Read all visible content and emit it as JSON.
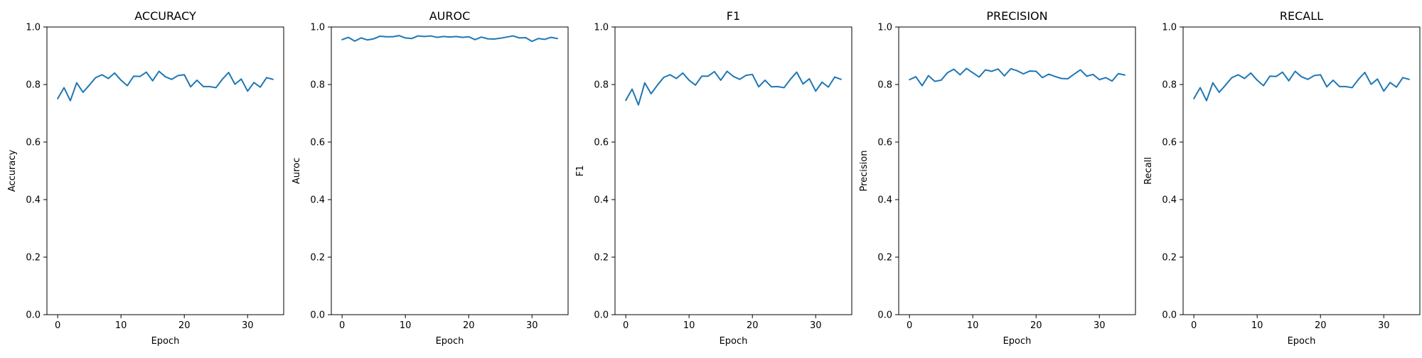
{
  "line_color": "#1f77b4",
  "chart_data": [
    {
      "type": "line",
      "title": "ACCURACY",
      "xlabel": "Epoch",
      "ylabel": "Accuracy",
      "xlim": [
        -1.7,
        35.7
      ],
      "ylim": [
        0.0,
        1.0
      ],
      "x_ticks": [
        0,
        10,
        20,
        30
      ],
      "y_ticks": [
        0.0,
        0.2,
        0.4,
        0.6,
        0.8,
        1.0
      ],
      "x_tick_labels": [
        "0",
        "10",
        "20",
        "30"
      ],
      "y_tick_labels": [
        "0.0",
        "0.2",
        "0.4",
        "0.6",
        "0.8",
        "1.0"
      ],
      "grid": false,
      "series": [
        {
          "x": [
            0,
            1,
            2,
            3,
            4,
            5,
            6,
            7,
            8,
            9,
            10,
            11,
            12,
            13,
            14,
            15,
            16,
            17,
            18,
            19,
            20,
            21,
            22,
            23,
            24,
            25,
            26,
            27,
            28,
            29,
            30,
            31,
            32,
            33,
            34
          ],
          "y": [
            0.751,
            0.789,
            0.744,
            0.806,
            0.773,
            0.798,
            0.824,
            0.834,
            0.821,
            0.84,
            0.815,
            0.796,
            0.829,
            0.828,
            0.843,
            0.813,
            0.846,
            0.827,
            0.818,
            0.831,
            0.834,
            0.792,
            0.815,
            0.793,
            0.793,
            0.789,
            0.818,
            0.842,
            0.801,
            0.819,
            0.777,
            0.807,
            0.791,
            0.824,
            0.818
          ]
        }
      ]
    },
    {
      "type": "line",
      "title": "AUROC",
      "xlabel": "Epoch",
      "ylabel": "Auroc",
      "xlim": [
        -1.7,
        35.7
      ],
      "ylim": [
        0.0,
        1.0
      ],
      "x_ticks": [
        0,
        10,
        20,
        30
      ],
      "y_ticks": [
        0.0,
        0.2,
        0.4,
        0.6,
        0.8,
        1.0
      ],
      "x_tick_labels": [
        "0",
        "10",
        "20",
        "30"
      ],
      "y_tick_labels": [
        "0.0",
        "0.2",
        "0.4",
        "0.6",
        "0.8",
        "1.0"
      ],
      "grid": false,
      "series": [
        {
          "x": [
            0,
            1,
            2,
            3,
            4,
            5,
            6,
            7,
            8,
            9,
            10,
            11,
            12,
            13,
            14,
            15,
            16,
            17,
            18,
            19,
            20,
            21,
            22,
            23,
            24,
            25,
            26,
            27,
            28,
            29,
            30,
            31,
            32,
            33,
            34
          ],
          "y": [
            0.956,
            0.964,
            0.951,
            0.962,
            0.955,
            0.959,
            0.968,
            0.966,
            0.966,
            0.97,
            0.962,
            0.96,
            0.969,
            0.967,
            0.969,
            0.964,
            0.967,
            0.965,
            0.967,
            0.964,
            0.966,
            0.956,
            0.965,
            0.959,
            0.958,
            0.961,
            0.965,
            0.969,
            0.962,
            0.963,
            0.95,
            0.96,
            0.957,
            0.964,
            0.96
          ]
        }
      ]
    },
    {
      "type": "line",
      "title": "F1",
      "xlabel": "Epoch",
      "ylabel": "F1",
      "xlim": [
        -1.7,
        35.7
      ],
      "ylim": [
        0.0,
        1.0
      ],
      "x_ticks": [
        0,
        10,
        20,
        30
      ],
      "y_ticks": [
        0.0,
        0.2,
        0.4,
        0.6,
        0.8,
        1.0
      ],
      "x_tick_labels": [
        "0",
        "10",
        "20",
        "30"
      ],
      "y_tick_labels": [
        "0.0",
        "0.2",
        "0.4",
        "0.6",
        "0.8",
        "1.0"
      ],
      "grid": false,
      "series": [
        {
          "x": [
            0,
            1,
            2,
            3,
            4,
            5,
            6,
            7,
            8,
            9,
            10,
            11,
            12,
            13,
            14,
            15,
            16,
            17,
            18,
            19,
            20,
            21,
            22,
            23,
            24,
            25,
            26,
            27,
            28,
            29,
            30,
            31,
            32,
            33,
            34
          ],
          "y": [
            0.745,
            0.784,
            0.729,
            0.806,
            0.768,
            0.798,
            0.825,
            0.834,
            0.821,
            0.84,
            0.815,
            0.798,
            0.829,
            0.829,
            0.845,
            0.815,
            0.846,
            0.828,
            0.818,
            0.832,
            0.835,
            0.792,
            0.815,
            0.792,
            0.793,
            0.789,
            0.818,
            0.843,
            0.802,
            0.82,
            0.777,
            0.808,
            0.791,
            0.826,
            0.818
          ]
        }
      ]
    },
    {
      "type": "line",
      "title": "PRECISION",
      "xlabel": "Epoch",
      "ylabel": "Precision",
      "xlim": [
        -1.7,
        35.7
      ],
      "ylim": [
        0.0,
        1.0
      ],
      "x_ticks": [
        0,
        10,
        20,
        30
      ],
      "y_ticks": [
        0.0,
        0.2,
        0.4,
        0.6,
        0.8,
        1.0
      ],
      "x_tick_labels": [
        "0",
        "10",
        "20",
        "30"
      ],
      "y_tick_labels": [
        "0.0",
        "0.2",
        "0.4",
        "0.6",
        "0.8",
        "1.0"
      ],
      "grid": false,
      "series": [
        {
          "x": [
            0,
            1,
            2,
            3,
            4,
            5,
            6,
            7,
            8,
            9,
            10,
            11,
            12,
            13,
            14,
            15,
            16,
            17,
            18,
            19,
            20,
            21,
            22,
            23,
            24,
            25,
            26,
            27,
            28,
            29,
            30,
            31,
            32,
            33,
            34
          ],
          "y": [
            0.817,
            0.827,
            0.796,
            0.831,
            0.811,
            0.815,
            0.841,
            0.853,
            0.834,
            0.856,
            0.841,
            0.826,
            0.851,
            0.846,
            0.854,
            0.83,
            0.855,
            0.848,
            0.837,
            0.847,
            0.846,
            0.824,
            0.836,
            0.828,
            0.821,
            0.82,
            0.836,
            0.851,
            0.829,
            0.835,
            0.817,
            0.824,
            0.812,
            0.838,
            0.833
          ]
        }
      ]
    },
    {
      "type": "line",
      "title": "RECALL",
      "xlabel": "Epoch",
      "ylabel": "Recall",
      "xlim": [
        -1.7,
        35.7
      ],
      "ylim": [
        0.0,
        1.0
      ],
      "x_ticks": [
        0,
        10,
        20,
        30
      ],
      "y_ticks": [
        0.0,
        0.2,
        0.4,
        0.6,
        0.8,
        1.0
      ],
      "x_tick_labels": [
        "0",
        "10",
        "20",
        "30"
      ],
      "y_tick_labels": [
        "0.0",
        "0.2",
        "0.4",
        "0.6",
        "0.8",
        "1.0"
      ],
      "grid": false,
      "series": [
        {
          "x": [
            0,
            1,
            2,
            3,
            4,
            5,
            6,
            7,
            8,
            9,
            10,
            11,
            12,
            13,
            14,
            15,
            16,
            17,
            18,
            19,
            20,
            21,
            22,
            23,
            24,
            25,
            26,
            27,
            28,
            29,
            30,
            31,
            32,
            33,
            34
          ],
          "y": [
            0.751,
            0.789,
            0.744,
            0.806,
            0.773,
            0.798,
            0.824,
            0.834,
            0.821,
            0.84,
            0.815,
            0.796,
            0.829,
            0.828,
            0.843,
            0.813,
            0.846,
            0.827,
            0.818,
            0.831,
            0.834,
            0.792,
            0.815,
            0.793,
            0.793,
            0.789,
            0.818,
            0.842,
            0.801,
            0.819,
            0.777,
            0.807,
            0.791,
            0.824,
            0.818
          ]
        }
      ]
    }
  ]
}
